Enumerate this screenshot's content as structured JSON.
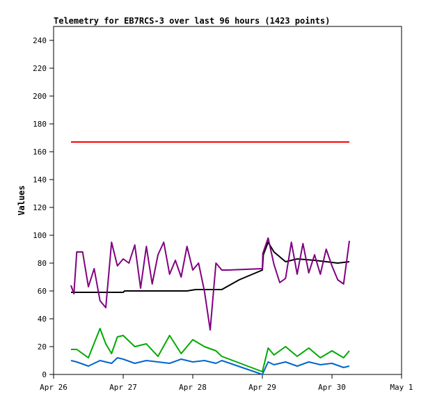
{
  "chart_data": {
    "type": "line",
    "title": "Telemetry for EB7RCS-3 over last 96 hours (1423 points)",
    "ylabel": "Values",
    "xlabel": "",
    "ylim": [
      0,
      250
    ],
    "yticks": [
      0,
      20,
      40,
      60,
      80,
      100,
      120,
      140,
      160,
      180,
      200,
      220,
      240
    ],
    "xlim": [
      "2025-04-26T00:00",
      "2025-05-01T00:00"
    ],
    "xticks": [
      {
        "label": "Apr 26",
        "at": "2025-04-26T00:00"
      },
      {
        "label": "Apr 27",
        "at": "2025-04-27T00:00"
      },
      {
        "label": "Apr 28",
        "at": "2025-04-28T00:00"
      },
      {
        "label": "Apr 29",
        "at": "2025-04-29T00:00"
      },
      {
        "label": "Apr 30",
        "at": "2025-04-30T00:00"
      },
      {
        "label": "May 1",
        "at": "2025-05-01T00:00"
      }
    ],
    "grid": false,
    "legend": "none",
    "series": [
      {
        "color": "#ff0000",
        "x": [
          "2025-04-26T06:00",
          "2025-04-28T12:00",
          "2025-04-30T06:00"
        ],
        "values": [
          167,
          167,
          167
        ]
      },
      {
        "color": "#000000",
        "x": [
          "2025-04-26T06:00",
          "2025-04-27T00:00",
          "2025-04-27T00:30",
          "2025-04-27T08:00",
          "2025-04-27T09:00",
          "2025-04-27T22:00",
          "2025-04-28T01:00",
          "2025-04-28T10:00",
          "2025-04-28T16:00",
          "2025-04-29T00:00",
          "2025-04-29T00:20",
          "2025-04-29T02:00",
          "2025-04-29T04:00",
          "2025-04-29T08:00",
          "2025-04-29T12:00",
          "2025-04-29T18:00",
          "2025-04-29T22:00",
          "2025-04-30T02:00",
          "2025-04-30T06:00"
        ],
        "values": [
          59,
          59,
          60,
          60,
          60,
          60,
          61,
          61,
          68,
          75,
          86,
          95,
          88,
          81,
          83,
          82,
          81,
          80,
          81
        ]
      },
      {
        "color": "#800080",
        "x": [
          "2025-04-26T06:00",
          "2025-04-26T07:00",
          "2025-04-26T08:00",
          "2025-04-26T10:00",
          "2025-04-26T12:00",
          "2025-04-26T14:00",
          "2025-04-26T16:00",
          "2025-04-26T18:00",
          "2025-04-26T20:00",
          "2025-04-26T22:00",
          "2025-04-27T00:00",
          "2025-04-27T02:00",
          "2025-04-27T04:00",
          "2025-04-27T06:00",
          "2025-04-27T08:00",
          "2025-04-27T10:00",
          "2025-04-27T12:00",
          "2025-04-27T14:00",
          "2025-04-27T16:00",
          "2025-04-27T18:00",
          "2025-04-27T20:00",
          "2025-04-27T22:00",
          "2025-04-28T00:00",
          "2025-04-28T02:00",
          "2025-04-28T04:00",
          "2025-04-28T06:00",
          "2025-04-28T08:00",
          "2025-04-28T10:00",
          "2025-04-28T12:00",
          "2025-04-29T00:00",
          "2025-04-29T00:10",
          "2025-04-29T02:00",
          "2025-04-29T04:00",
          "2025-04-29T06:00",
          "2025-04-29T08:00",
          "2025-04-29T10:00",
          "2025-04-29T12:00",
          "2025-04-29T14:00",
          "2025-04-29T16:00",
          "2025-04-29T18:00",
          "2025-04-29T20:00",
          "2025-04-29T22:00",
          "2025-04-30T00:00",
          "2025-04-30T02:00",
          "2025-04-30T04:00",
          "2025-04-30T06:00"
        ],
        "values": [
          64,
          58,
          88,
          88,
          63,
          76,
          53,
          48,
          95,
          78,
          83,
          80,
          93,
          62,
          92,
          65,
          86,
          95,
          72,
          82,
          70,
          92,
          75,
          80,
          60,
          32,
          80,
          75,
          75,
          76,
          87,
          98,
          79,
          66,
          69,
          95,
          72,
          94,
          73,
          86,
          72,
          90,
          78,
          68,
          65,
          96
        ]
      },
      {
        "color": "#00aa00",
        "x": [
          "2025-04-26T06:00",
          "2025-04-26T08:00",
          "2025-04-26T12:00",
          "2025-04-26T16:00",
          "2025-04-26T18:00",
          "2025-04-26T20:00",
          "2025-04-26T22:00",
          "2025-04-27T00:00",
          "2025-04-27T04:00",
          "2025-04-27T08:00",
          "2025-04-27T12:00",
          "2025-04-27T16:00",
          "2025-04-27T20:00",
          "2025-04-28T00:00",
          "2025-04-28T04:00",
          "2025-04-28T08:00",
          "2025-04-28T10:00",
          "2025-04-29T00:00",
          "2025-04-29T02:00",
          "2025-04-29T04:00",
          "2025-04-29T08:00",
          "2025-04-29T12:00",
          "2025-04-29T16:00",
          "2025-04-29T20:00",
          "2025-04-30T00:00",
          "2025-04-30T04:00",
          "2025-04-30T06:00"
        ],
        "values": [
          18,
          18,
          12,
          33,
          22,
          15,
          27,
          28,
          20,
          22,
          13,
          28,
          15,
          25,
          20,
          17,
          13,
          2,
          19,
          14,
          20,
          13,
          19,
          12,
          17,
          12,
          17
        ]
      },
      {
        "color": "#0066cc",
        "x": [
          "2025-04-26T06:00",
          "2025-04-26T08:00",
          "2025-04-26T12:00",
          "2025-04-26T16:00",
          "2025-04-26T20:00",
          "2025-04-26T22:00",
          "2025-04-27T00:00",
          "2025-04-27T04:00",
          "2025-04-27T08:00",
          "2025-04-27T12:00",
          "2025-04-27T16:00",
          "2025-04-27T20:00",
          "2025-04-28T00:00",
          "2025-04-28T04:00",
          "2025-04-28T08:00",
          "2025-04-28T10:00",
          "2025-04-29T00:00",
          "2025-04-29T02:00",
          "2025-04-29T04:00",
          "2025-04-29T08:00",
          "2025-04-29T12:00",
          "2025-04-29T16:00",
          "2025-04-29T20:00",
          "2025-04-30T00:00",
          "2025-04-30T04:00",
          "2025-04-30T06:00"
        ],
        "values": [
          10,
          9,
          6,
          10,
          8,
          12,
          11,
          8,
          10,
          9,
          8,
          11,
          9,
          10,
          8,
          10,
          0,
          9,
          7,
          9,
          6,
          9,
          7,
          8,
          5,
          6
        ]
      }
    ]
  }
}
